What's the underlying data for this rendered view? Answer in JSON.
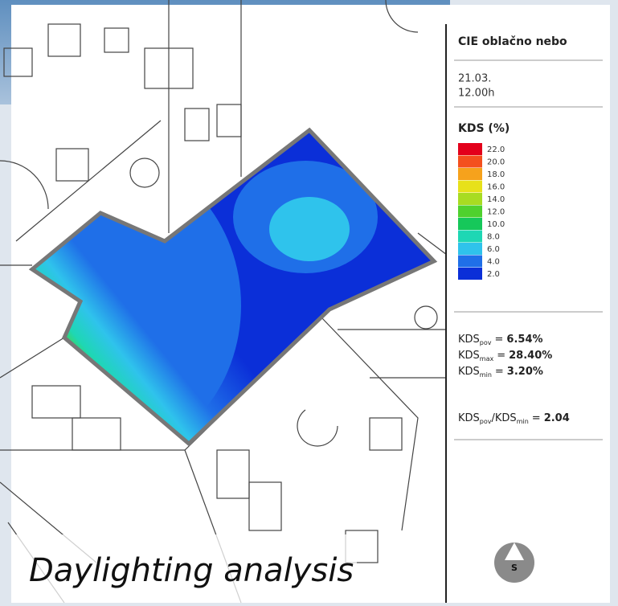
{
  "caption": "Daylighting analysis",
  "panel": {
    "sky": "CIE oblačno nebo",
    "date": "21.03.",
    "time": "12.00h",
    "legend_title": "KDS (%)",
    "legend": [
      {
        "label": "22.0",
        "color": "#e3001b"
      },
      {
        "label": "20.0",
        "color": "#f4501e"
      },
      {
        "label": "18.0",
        "color": "#f6a21c"
      },
      {
        "label": "16.0",
        "color": "#e7e11a"
      },
      {
        "label": "14.0",
        "color": "#a8dc22"
      },
      {
        "label": "12.0",
        "color": "#4fd12e"
      },
      {
        "label": "10.0",
        "color": "#16c85a"
      },
      {
        "label": "8.0",
        "color": "#1ed7b4"
      },
      {
        "label": "6.0",
        "color": "#2fc3ec"
      },
      {
        "label": "4.0",
        "color": "#1f6fe8"
      },
      {
        "label": "2.0",
        "color": "#0b2fd8"
      }
    ],
    "stats": [
      {
        "name": "KDS",
        "sub": "pov",
        "eq": "=",
        "value": "6.54%"
      },
      {
        "name": "KDS",
        "sub": "max",
        "eq": "=",
        "value": "28.40%"
      },
      {
        "name": "KDS",
        "sub": "min",
        "eq": "=",
        "value": "3.20%"
      }
    ],
    "ratio": {
      "name": "KDS",
      "sub": "pov",
      "slash": "/KDS",
      "sub2": "min",
      "eq": "=",
      "value": "2.04"
    },
    "north": "S"
  }
}
